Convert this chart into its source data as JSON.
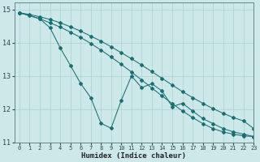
{
  "xlabel": "Humidex (Indice chaleur)",
  "ylabel": "",
  "bg_color": "#cce8e8",
  "grid_color": "#aad0d0",
  "line_color": "#1a7070",
  "xlim": [
    -0.5,
    23
  ],
  "ylim": [
    11,
    15.2
  ],
  "xticks": [
    0,
    1,
    2,
    3,
    4,
    5,
    6,
    7,
    8,
    9,
    10,
    11,
    12,
    13,
    14,
    15,
    16,
    17,
    18,
    19,
    20,
    21,
    22,
    23
  ],
  "yticks": [
    11,
    12,
    13,
    14,
    15
  ],
  "series": [
    {
      "x": [
        0,
        1,
        2,
        3,
        4,
        5,
        6,
        7,
        8,
        9,
        10,
        11,
        12,
        13,
        14,
        15,
        16,
        17,
        18,
        19,
        20,
        21,
        22,
        23
      ],
      "y": [
        14.9,
        14.85,
        14.78,
        14.7,
        14.6,
        14.48,
        14.35,
        14.2,
        14.05,
        13.88,
        13.7,
        13.52,
        13.33,
        13.13,
        12.93,
        12.73,
        12.53,
        12.35,
        12.18,
        12.02,
        11.88,
        11.75,
        11.65,
        11.42
      ]
    },
    {
      "x": [
        0,
        1,
        2,
        3,
        4,
        5,
        6,
        7,
        8,
        9,
        10,
        11,
        12,
        13,
        14,
        15,
        16,
        17,
        18,
        19,
        20,
        21,
        22,
        23
      ],
      "y": [
        14.9,
        14.82,
        14.72,
        14.6,
        14.47,
        14.32,
        14.16,
        13.98,
        13.78,
        13.57,
        13.35,
        13.12,
        12.88,
        12.64,
        12.4,
        12.17,
        11.95,
        11.75,
        11.57,
        11.42,
        11.32,
        11.25,
        11.2,
        11.18
      ]
    },
    {
      "x": [
        0,
        2,
        3,
        4,
        5,
        6,
        7,
        8,
        9,
        10,
        11,
        12,
        13,
        14,
        15,
        16,
        17,
        18,
        19,
        20,
        21,
        22,
        23
      ],
      "y": [
        14.9,
        14.72,
        14.45,
        13.85,
        13.32,
        12.78,
        12.35,
        11.58,
        11.43,
        12.27,
        13.0,
        12.65,
        12.77,
        12.55,
        12.08,
        12.18,
        11.95,
        11.72,
        11.57,
        11.42,
        11.32,
        11.25,
        11.18
      ]
    }
  ]
}
